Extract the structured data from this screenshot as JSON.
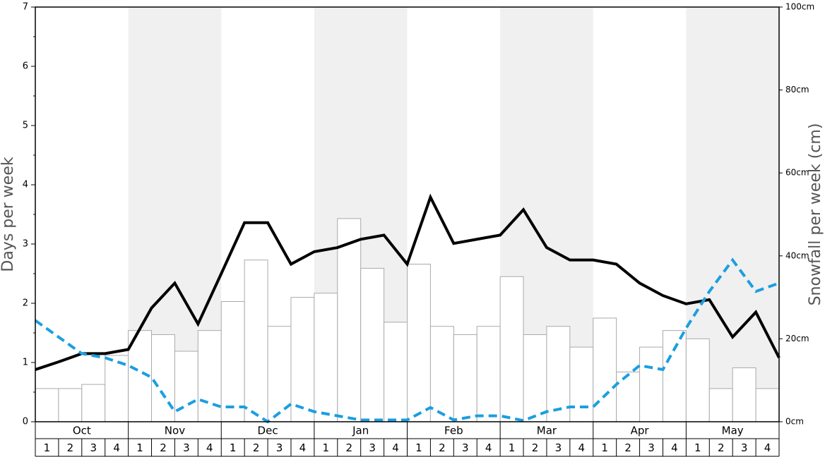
{
  "chart_data": {
    "type": "bar-line",
    "ylabel": "Days per week",
    "y2label": "Snowfall per week (cm)",
    "categories": [
      "Oct",
      "Nov",
      "Dec",
      "Jan",
      "Feb",
      "Mar",
      "Apr",
      "May"
    ],
    "week_labels": [
      "1",
      "2",
      "3",
      "4"
    ],
    "ylim": [
      0,
      7
    ],
    "yticks": [
      0,
      1,
      2,
      3,
      4,
      5,
      6,
      7
    ],
    "yminor_ticks": [
      0.5,
      1.5,
      2.5,
      3.5,
      4.5,
      5.5,
      6.5
    ],
    "y2lim": [
      0,
      100
    ],
    "y2ticks": [
      {
        "value": 0,
        "label": "0cm"
      },
      {
        "value": 20,
        "label": "20cm"
      },
      {
        "value": 40,
        "label": "40cm"
      },
      {
        "value": 60,
        "label": "60cm"
      },
      {
        "value": 80,
        "label": "80cm"
      },
      {
        "value": 100,
        "label": "100cm"
      }
    ],
    "shade_color": "#f0f0f0",
    "bars": {
      "axis": "y2",
      "color": "#ffffff",
      "edge": "#aaaaaa",
      "values": [
        8,
        8,
        9,
        16,
        22,
        21,
        17,
        22,
        29,
        39,
        23,
        30,
        31,
        49,
        37,
        24,
        38,
        23,
        21,
        23,
        35,
        21,
        23,
        18,
        25,
        12,
        18,
        22,
        20,
        8,
        13,
        8
      ]
    },
    "lines": [
      {
        "color": "#000000",
        "dashed": false,
        "values": [
          0.88,
          1.01,
          1.15,
          1.15,
          1.22,
          1.92,
          2.34,
          1.65,
          2.5,
          3.36,
          3.36,
          2.66,
          2.87,
          2.94,
          3.08,
          3.15,
          2.66,
          3.79,
          3.01,
          3.08,
          3.15,
          3.58,
          2.94,
          2.73,
          2.73,
          2.66,
          2.34,
          2.13,
          1.99,
          2.06,
          1.43,
          1.85,
          1.08
        ]
      },
      {
        "color": "#1a9fe0",
        "dashed": true,
        "values": [
          1.71,
          1.43,
          1.15,
          1.08,
          0.95,
          0.75,
          0.17,
          0.38,
          0.25,
          0.25,
          0.0,
          0.3,
          0.17,
          0.1,
          0.03,
          0.03,
          0.03,
          0.24,
          0.03,
          0.1,
          0.1,
          0.02,
          0.17,
          0.25,
          0.25,
          0.63,
          0.95,
          0.88,
          1.58,
          2.2,
          2.73,
          2.2,
          2.34
        ]
      }
    ]
  }
}
